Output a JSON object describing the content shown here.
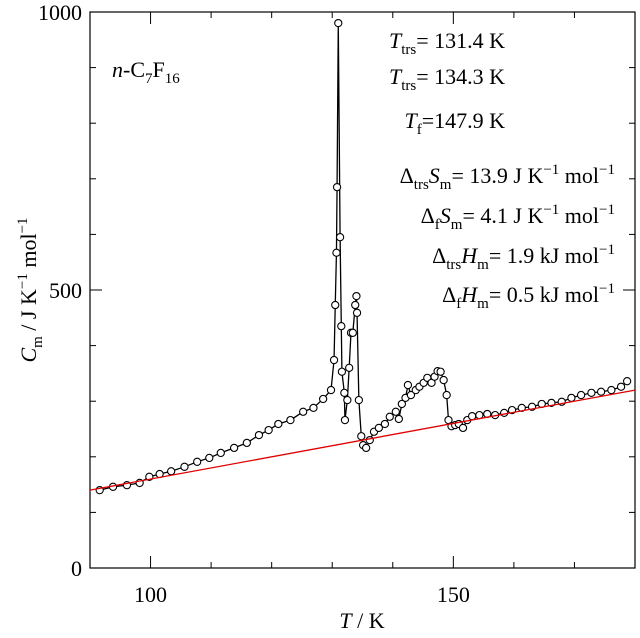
{
  "chart_data": {
    "type": "scatter-line",
    "x_label": [
      [
        "T",
        "i"
      ],
      [
        " / K",
        "r"
      ]
    ],
    "y_label": [
      [
        "C",
        "i"
      ],
      [
        "m",
        "sub"
      ],
      [
        " / J K",
        "r"
      ],
      [
        "−1",
        "sup"
      ],
      [
        " mol",
        "r"
      ],
      [
        "−1",
        "sup"
      ]
    ],
    "compound": [
      [
        "n",
        "i"
      ],
      [
        "-C",
        "r"
      ],
      [
        "7",
        "sub"
      ],
      [
        "F",
        "r"
      ],
      [
        "16",
        "sub"
      ]
    ],
    "annotations": [
      [
        [
          "T",
          "i"
        ],
        [
          "trs",
          "sub"
        ],
        [
          "= 131.4 K",
          "r"
        ]
      ],
      [
        [
          "T",
          "i"
        ],
        [
          "trs",
          "sub"
        ],
        [
          "= 134.3 K",
          "r"
        ]
      ],
      [
        [
          "T",
          "i"
        ],
        [
          "f",
          "sub"
        ],
        [
          "=147.9 K",
          "r"
        ]
      ],
      [
        [
          "Δ",
          "r"
        ],
        [
          "trs",
          "sub"
        ],
        [
          "S",
          "i"
        ],
        [
          "m",
          "sub"
        ],
        [
          "= 13.9 J K",
          "r"
        ],
        [
          "−1",
          "sup"
        ],
        [
          " mol",
          "r"
        ],
        [
          "−1",
          "sup"
        ]
      ],
      [
        [
          "Δ",
          "r"
        ],
        [
          "f",
          "sub"
        ],
        [
          "S",
          "i"
        ],
        [
          "m",
          "sub"
        ],
        [
          "= 4.1 J K",
          "r"
        ],
        [
          "−1",
          "sup"
        ],
        [
          " mol",
          "r"
        ],
        [
          "−1",
          "sup"
        ]
      ],
      [
        [
          "Δ",
          "r"
        ],
        [
          "trs",
          "sub"
        ],
        [
          "H",
          "i"
        ],
        [
          "m",
          "sub"
        ],
        [
          "= 1.9 kJ mol",
          "r"
        ],
        [
          "−1",
          "sup"
        ]
      ],
      [
        [
          "Δ",
          "r"
        ],
        [
          "f",
          "sub"
        ],
        [
          "H",
          "i"
        ],
        [
          "m",
          "sub"
        ],
        [
          "= 0.5 kJ mol",
          "r"
        ],
        [
          "−1",
          "sup"
        ]
      ]
    ],
    "xlim": [
      90,
      180
    ],
    "ylim": [
      0,
      1000
    ],
    "xticks": [
      100,
      150
    ],
    "yticks": [
      0,
      500,
      1000
    ],
    "xminorticks": [
      90,
      110,
      120,
      130,
      140,
      160,
      170,
      180
    ],
    "yminorticks": [
      100,
      200,
      300,
      400,
      600,
      700,
      800,
      900
    ],
    "series": [
      {
        "color": "#000000",
        "marker": "open-circle",
        "x": [
          91.6,
          93.8,
          96.1,
          98.2,
          99.8,
          101.5,
          103.4,
          105.6,
          107.7,
          109.7,
          111.6,
          113.8,
          115.9,
          117.9,
          119.5,
          121.1,
          123.1,
          125.2,
          126.9,
          128.5,
          129.8,
          130.3,
          130.5,
          130.7,
          130.8,
          131.0,
          131.3,
          131.5,
          131.6,
          132.0,
          132.1,
          132.5,
          132.8,
          133.1,
          133.4,
          133.8,
          134.0,
          134.1,
          134.4,
          134.8,
          135.1,
          135.6,
          136.2,
          136.9,
          137.7,
          138.7,
          139.5,
          140.5,
          141.0,
          141.5,
          142.1,
          142.5,
          143.0,
          143.8,
          144.4,
          145.1,
          145.7,
          146.4,
          146.9,
          147.4,
          147.9,
          148.4,
          148.9,
          149.2,
          149.7,
          150.3,
          150.9,
          151.6,
          152.3,
          153.1,
          154.3,
          155.6,
          156.9,
          158.4,
          159.7,
          161.3,
          163.0,
          164.6,
          166.2,
          167.9,
          169.5,
          171.1,
          172.8,
          174.4,
          176.1,
          177.7,
          178.7
        ],
        "values": [
          140,
          146,
          149,
          153,
          164,
          169,
          174,
          182,
          191,
          198,
          207,
          216,
          225,
          239,
          248,
          259,
          266,
          281,
          288,
          304,
          320,
          374,
          473,
          567,
          685,
          980,
          595,
          435,
          353,
          315,
          266,
          302,
          360,
          423,
          423,
          473,
          489,
          459,
          302,
          237,
          221,
          216,
          230,
          245,
          252,
          259,
          272,
          281,
          268,
          295,
          306,
          329,
          311,
          320,
          326,
          333,
          342,
          333,
          344,
          354,
          353,
          338,
          311,
          266,
          255,
          257,
          259,
          252,
          266,
          273,
          275,
          277,
          275,
          279,
          284,
          288,
          290,
          295,
          297,
          299,
          306,
          311,
          315,
          317,
          320,
          326,
          336
        ]
      },
      {
        "color": "#e00000",
        "marker": "none",
        "x": [
          90,
          180
        ],
        "values": [
          140,
          320
        ]
      }
    ]
  }
}
